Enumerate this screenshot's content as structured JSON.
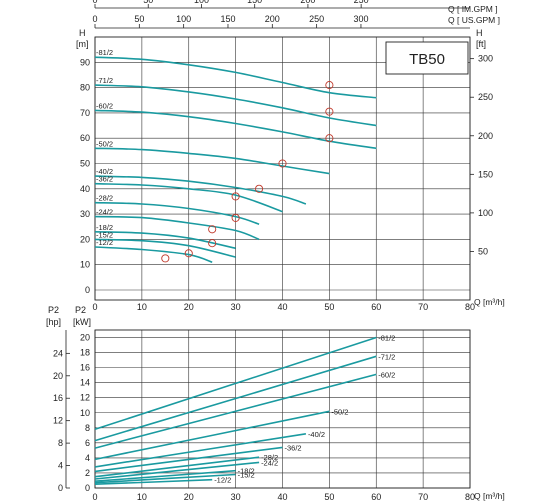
{
  "chart_data": [
    {
      "type": "line",
      "model_label": "TB50",
      "top_axis_gpm_label": "Q [ IM.GPM ]",
      "top_axis_usgpm_label": "Q [ US.GPM ]",
      "ylabel_left": "H",
      "ylabel_left_unit": "[m]",
      "ylabel_right": "H",
      "ylabel_right_unit": "[ft]",
      "xlabel": "Q [m³/h]",
      "xlim": [
        0,
        80
      ],
      "ylim": [
        0,
        100
      ],
      "x_ticks": [
        "0",
        "10",
        "20",
        "30",
        "40",
        "50",
        "60",
        "70",
        "80"
      ],
      "y_ticks": [
        "0",
        "10",
        "20",
        "30",
        "40",
        "50",
        "60",
        "70",
        "80",
        "90"
      ],
      "ft_ticks": [
        "50",
        "100",
        "150",
        "200",
        "250",
        "300"
      ],
      "im_gpm_ticks": [
        "0",
        "50",
        "100",
        "150",
        "200",
        "250"
      ],
      "us_gpm_ticks": [
        "0",
        "50",
        "100",
        "150",
        "200",
        "250",
        "300"
      ],
      "series": [
        {
          "name": "-81/2",
          "x": [
            0,
            10,
            20,
            30,
            40,
            50,
            60
          ],
          "y": [
            92,
            91.2,
            89,
            86,
            82,
            78,
            76
          ]
        },
        {
          "name": "-71/2",
          "x": [
            0,
            10,
            20,
            30,
            40,
            50,
            60
          ],
          "y": [
            81,
            80.3,
            78.3,
            75.5,
            72,
            68,
            65
          ]
        },
        {
          "name": "-60/2",
          "x": [
            0,
            10,
            20,
            30,
            40,
            50,
            60
          ],
          "y": [
            71,
            70.3,
            68.5,
            65.8,
            62.5,
            58.8,
            56
          ]
        },
        {
          "name": "-50/2",
          "x": [
            0,
            10,
            20,
            30,
            40,
            50
          ],
          "y": [
            56,
            55.5,
            54,
            52,
            49,
            46
          ]
        },
        {
          "name": "-40/2",
          "x": [
            0,
            10,
            20,
            30,
            40,
            45
          ],
          "y": [
            45,
            44.5,
            43,
            40.5,
            37,
            34
          ]
        },
        {
          "name": "-36/2",
          "x": [
            0,
            10,
            20,
            30,
            40
          ],
          "y": [
            42,
            41.5,
            40,
            37.5,
            31
          ]
        },
        {
          "name": "-28/2",
          "x": [
            0,
            10,
            20,
            30,
            35
          ],
          "y": [
            34.5,
            34,
            32.2,
            29,
            26
          ]
        },
        {
          "name": "-24/2",
          "x": [
            0,
            10,
            20,
            30,
            35
          ],
          "y": [
            29,
            28.6,
            26.5,
            23.5,
            20
          ]
        },
        {
          "name": "-18/2",
          "x": [
            0,
            10,
            20,
            30
          ],
          "y": [
            23,
            22.5,
            20.5,
            16.5
          ]
        },
        {
          "name": "-15/2",
          "x": [
            0,
            10,
            20,
            30
          ],
          "y": [
            20,
            19.5,
            17.5,
            13
          ]
        },
        {
          "name": "-12/2",
          "x": [
            0,
            10,
            20,
            25
          ],
          "y": [
            17,
            16,
            14,
            11
          ]
        }
      ],
      "bep_points": [
        {
          "x": 50,
          "y": 81
        },
        {
          "x": 50,
          "y": 70.5
        },
        {
          "x": 50,
          "y": 60
        },
        {
          "x": 40,
          "y": 50
        },
        {
          "x": 35,
          "y": 40
        },
        {
          "x": 30,
          "y": 37
        },
        {
          "x": 30,
          "y": 28.5
        },
        {
          "x": 25,
          "y": 24
        },
        {
          "x": 25,
          "y": 18.5
        },
        {
          "x": 20,
          "y": 14.5
        },
        {
          "x": 15,
          "y": 12.5
        }
      ]
    },
    {
      "type": "line",
      "ylabel_left": "P2",
      "ylabel_left_unit": "[hp]",
      "ylabel_right": "P2",
      "ylabel_right_unit": "[kW]",
      "xlabel": "Q [m³/h]",
      "xlim": [
        0,
        80
      ],
      "ylim": [
        0,
        21
      ],
      "x_ticks": [
        "0",
        "10",
        "20",
        "30",
        "40",
        "50",
        "60",
        "70",
        "80"
      ],
      "kw_ticks": [
        "0",
        "2",
        "4",
        "6",
        "8",
        "10",
        "12",
        "14",
        "16",
        "18",
        "20"
      ],
      "hp_ticks": [
        "0",
        "4",
        "8",
        "12",
        "16",
        "20",
        "24"
      ],
      "series": [
        {
          "name": "-81/2",
          "x": [
            0,
            60
          ],
          "y": [
            7.8,
            20
          ]
        },
        {
          "name": "-71/2",
          "x": [
            0,
            60
          ],
          "y": [
            6.3,
            17.5
          ]
        },
        {
          "name": "-60/2",
          "x": [
            0,
            60
          ],
          "y": [
            5.3,
            15.1
          ]
        },
        {
          "name": "-50/2",
          "x": [
            0,
            50
          ],
          "y": [
            3.8,
            10.2
          ]
        },
        {
          "name": "-40/2",
          "x": [
            0,
            45
          ],
          "y": [
            2.8,
            7.2
          ]
        },
        {
          "name": "-36/2",
          "x": [
            0,
            40
          ],
          "y": [
            2.2,
            5.4
          ]
        },
        {
          "name": "-28/2",
          "x": [
            0,
            35
          ],
          "y": [
            1.5,
            4.1
          ]
        },
        {
          "name": "-24/2",
          "x": [
            0,
            35
          ],
          "y": [
            1.2,
            3.4
          ]
        },
        {
          "name": "-18/2",
          "x": [
            0,
            30
          ],
          "y": [
            0.9,
            2.3
          ]
        },
        {
          "name": "-15/2",
          "x": [
            0,
            30
          ],
          "y": [
            0.7,
            1.8
          ]
        },
        {
          "name": "-12/2",
          "x": [
            0,
            25
          ],
          "y": [
            0.5,
            1.1
          ]
        }
      ]
    }
  ]
}
